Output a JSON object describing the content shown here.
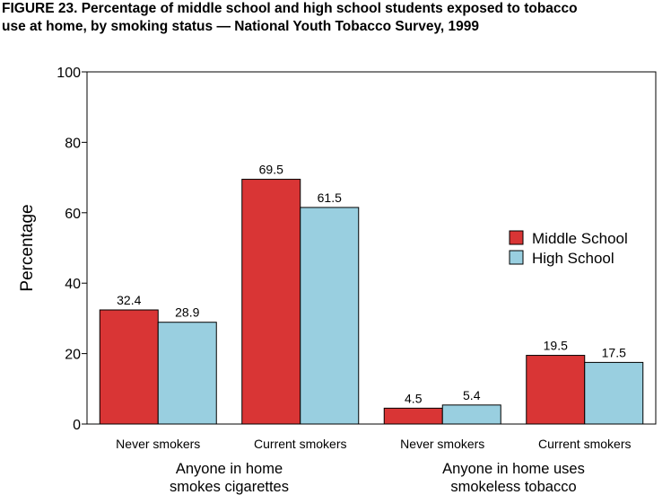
{
  "title_line1": "FIGURE 23. Percentage of middle school and high school students exposed to tobacco",
  "title_line2": "use at home, by smoking status — National Youth Tobacco Survey, 1999",
  "chart_data": {
    "type": "bar",
    "title": "FIGURE 23. Percentage of middle school and high school students exposed to tobacco use at home, by smoking status — National Youth Tobacco Survey, 1999",
    "ylabel": "Percentage",
    "xlabel": "",
    "ylim": [
      0,
      100
    ],
    "yticks": [
      0,
      20,
      40,
      60,
      80,
      100
    ],
    "grid": false,
    "legend_position": "right",
    "categories": [
      "Never smokers",
      "Current smokers",
      "Never smokers",
      "Current smokers"
    ],
    "groups": [
      {
        "label_line1": "Anyone in home",
        "label_line2": "smokes cigarettes",
        "categories": [
          0,
          1
        ]
      },
      {
        "label_line1": "Anyone in home uses",
        "label_line2": "smokeless tobacco",
        "categories": [
          2,
          3
        ]
      }
    ],
    "series": [
      {
        "name": "Middle School",
        "color": "#d93535",
        "values": [
          32.4,
          69.5,
          4.5,
          19.5
        ],
        "labels": [
          "32.4",
          "69.5",
          "4.5",
          "19.5"
        ]
      },
      {
        "name": "High School",
        "color": "#99cfe0",
        "values": [
          28.9,
          61.5,
          5.4,
          17.5
        ],
        "labels": [
          "28.9",
          "61.5",
          "5.4",
          "17.5"
        ]
      }
    ]
  }
}
